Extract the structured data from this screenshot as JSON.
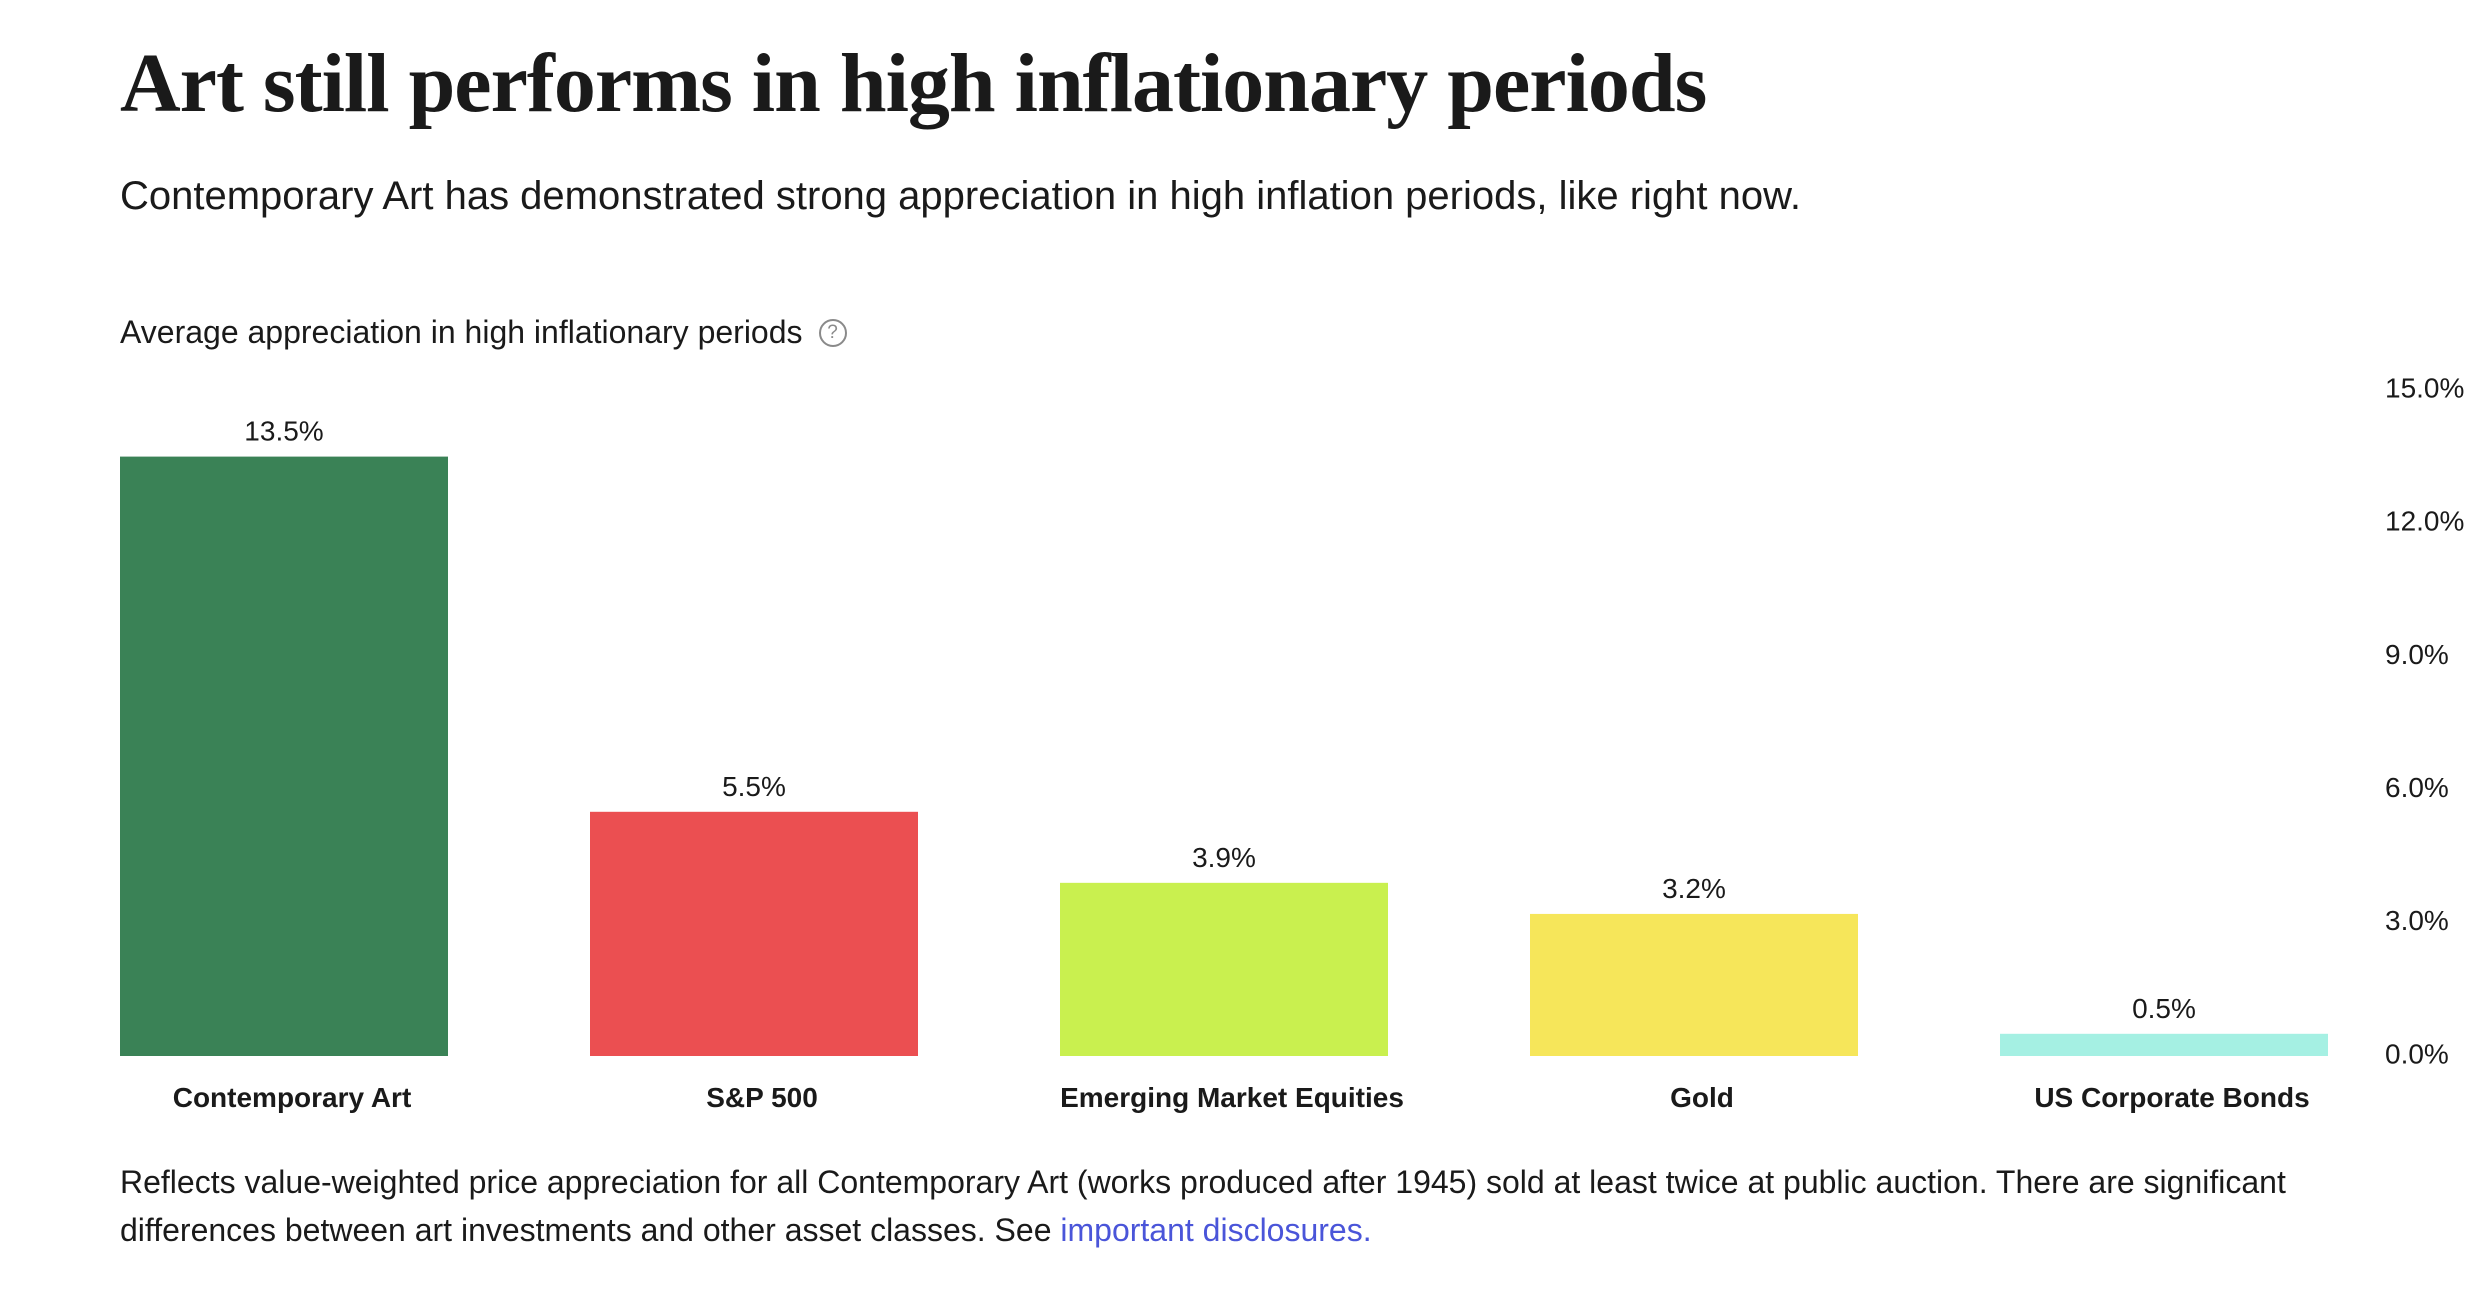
{
  "header": {
    "title": "Art still performs in high inflationary periods",
    "subtitle": "Contemporary Art has demonstrated strong appreciation in high inflation periods, like right now."
  },
  "chart_header": {
    "title": "Average appreciation in high inflationary periods",
    "help_icon_glyph": "?",
    "help_icon": "question-circle-icon"
  },
  "chart_data": {
    "type": "bar",
    "title": "Average appreciation in high inflationary periods",
    "categories": [
      "Contemporary Art",
      "S&P 500",
      "Emerging Market Equities",
      "Gold",
      "US Corporate Bonds"
    ],
    "values": [
      13.5,
      5.5,
      3.9,
      3.2,
      0.5
    ],
    "value_labels": [
      "13.5%",
      "5.5%",
      "3.9%",
      "3.2%",
      "0.5%"
    ],
    "colors": [
      "#3a8256",
      "#eb4f51",
      "#c9f04f",
      "#f6e65a",
      "#a5f0e3"
    ],
    "ylim": [
      0,
      15
    ],
    "yticks": [
      0,
      3,
      6,
      9,
      12,
      15
    ],
    "ytick_labels": [
      "0.0%",
      "3.0%",
      "6.0%",
      "9.0%",
      "12.0%",
      "15.0%"
    ],
    "y_axis_position": "right",
    "grid": false,
    "legend": "none"
  },
  "footer": {
    "note": "Reflects value-weighted price appreciation for all Contemporary Art (works produced after 1945) sold at least twice at public auction. There are significant differences between art investments and other asset classes. See ",
    "link_label": "important disclosures."
  }
}
